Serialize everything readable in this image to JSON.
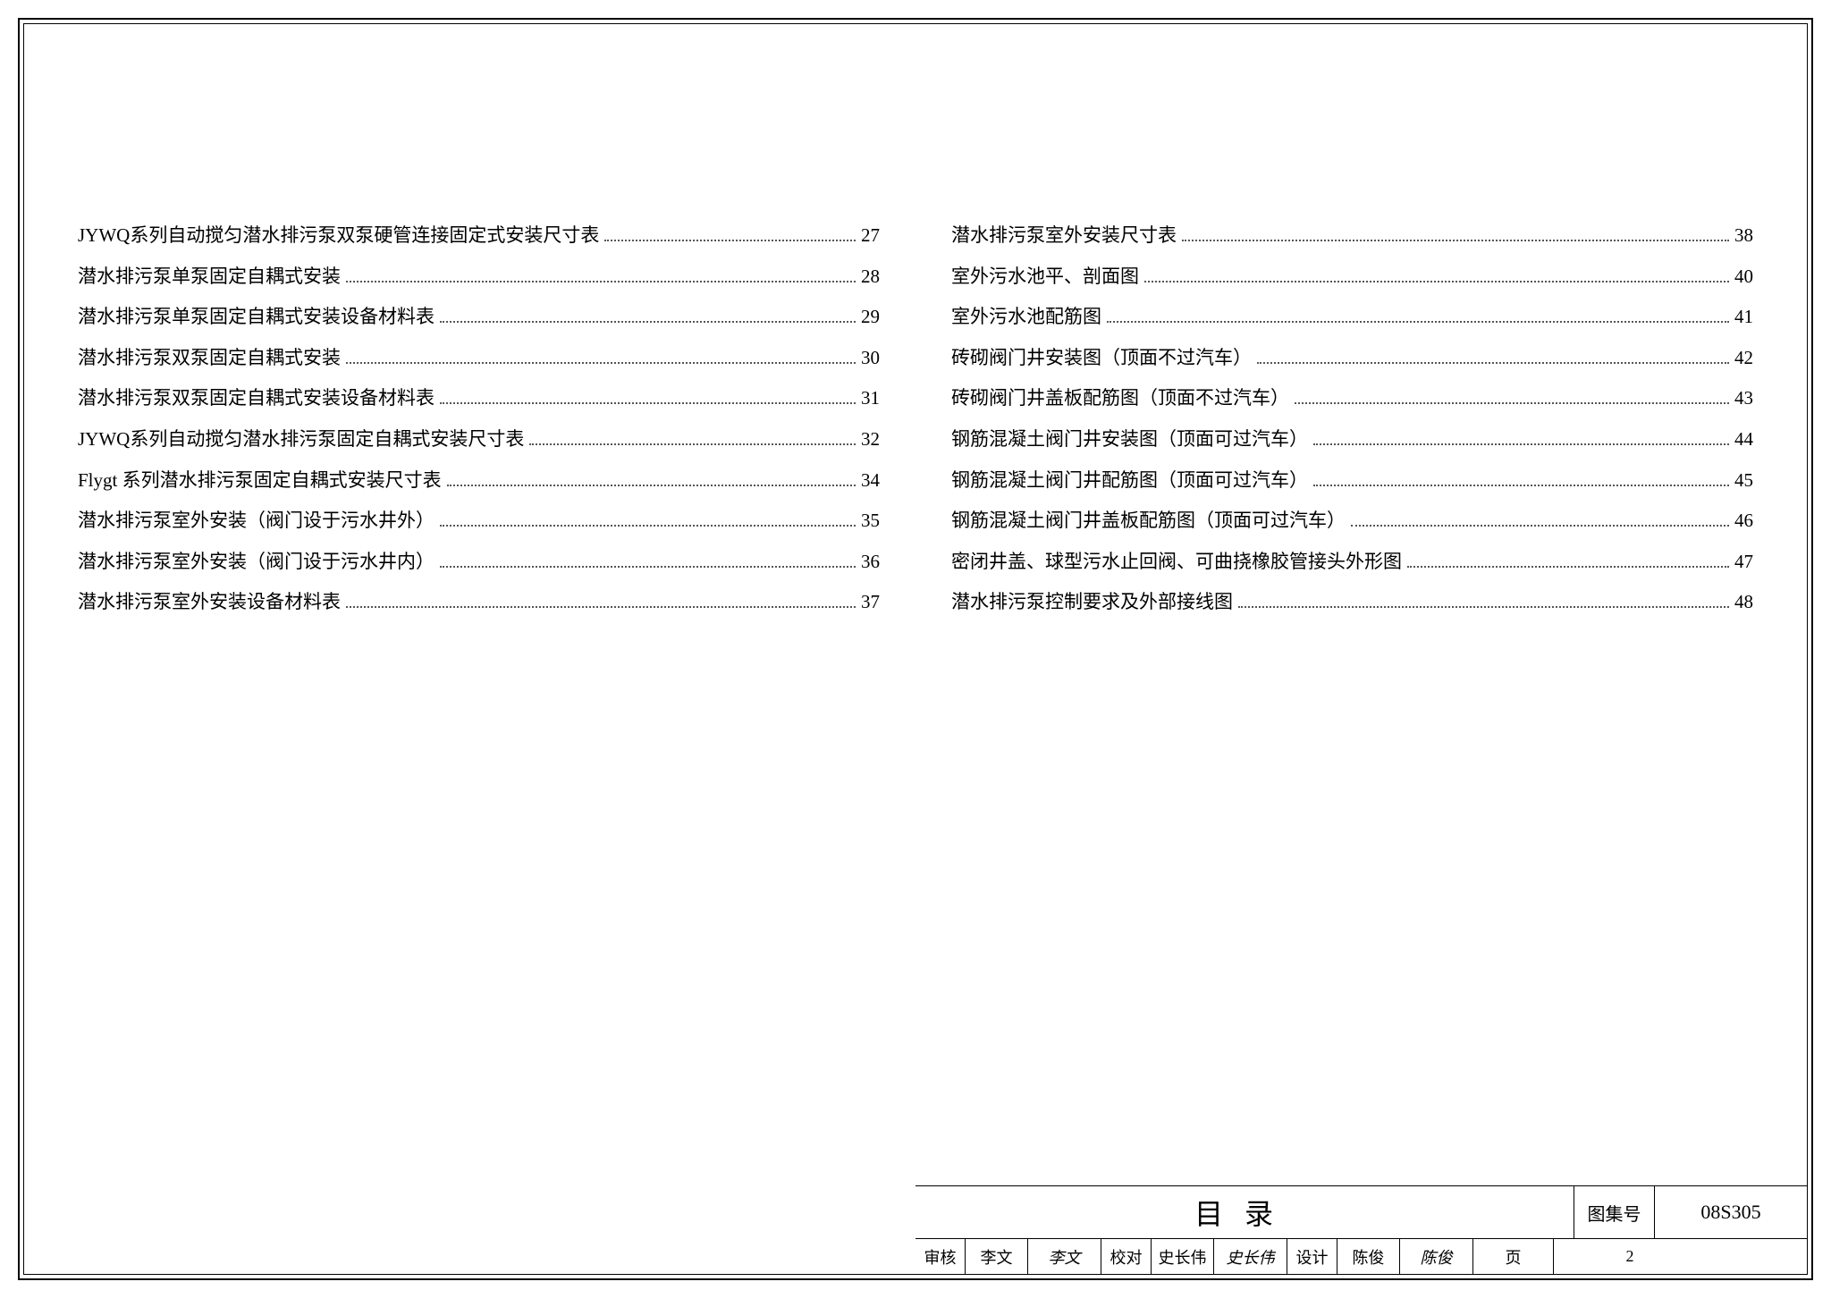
{
  "toc": {
    "left": [
      {
        "title": "JYWQ系列自动搅匀潜水排污泵双泵硬管连接固定式安装尺寸表",
        "page": "27"
      },
      {
        "title": "潜水排污泵单泵固定自耦式安装",
        "page": "28"
      },
      {
        "title": "潜水排污泵单泵固定自耦式安装设备材料表",
        "page": "29"
      },
      {
        "title": "潜水排污泵双泵固定自耦式安装",
        "page": "30"
      },
      {
        "title": "潜水排污泵双泵固定自耦式安装设备材料表",
        "page": "31"
      },
      {
        "title": "JYWQ系列自动搅匀潜水排污泵固定自耦式安装尺寸表",
        "page": "32"
      },
      {
        "title": "Flygt 系列潜水排污泵固定自耦式安装尺寸表",
        "page": "34"
      },
      {
        "title": "潜水排污泵室外安装（阀门设于污水井外）",
        "page": "35"
      },
      {
        "title": "潜水排污泵室外安装（阀门设于污水井内）",
        "page": "36"
      },
      {
        "title": "潜水排污泵室外安装设备材料表",
        "page": "37"
      }
    ],
    "right": [
      {
        "title": "潜水排污泵室外安装尺寸表",
        "page": "38"
      },
      {
        "title": "室外污水池平、剖面图",
        "page": "40"
      },
      {
        "title": "室外污水池配筋图",
        "page": "41"
      },
      {
        "title": "砖砌阀门井安装图（顶面不过汽车）",
        "page": "42"
      },
      {
        "title": "砖砌阀门井盖板配筋图（顶面不过汽车）",
        "page": "43"
      },
      {
        "title": "钢筋混凝土阀门井安装图（顶面可过汽车）",
        "page": "44"
      },
      {
        "title": "钢筋混凝土阀门井配筋图（顶面可过汽车）",
        "page": "45"
      },
      {
        "title": "钢筋混凝土阀门井盖板配筋图（顶面可过汽车）",
        "page": "46"
      },
      {
        "title": "密闭井盖、球型污水止回阀、可曲挠橡胶管接头外形图",
        "page": "47"
      },
      {
        "title": "潜水排污泵控制要求及外部接线图",
        "page": "48"
      }
    ]
  },
  "titleblock": {
    "main_title": "目录",
    "code_label": "图集号",
    "code_value": "08S305",
    "review_label": "审核",
    "review_name": "李文",
    "review_sig": "李文",
    "check_label": "校对",
    "check_name": "史长伟",
    "check_sig": "史长伟",
    "design_label": "设计",
    "design_name": "陈俊",
    "design_sig": "陈俊",
    "page_label": "页",
    "page_value": "2"
  },
  "style": {
    "font_family": "SimSun",
    "body_fontsize": 21,
    "title_fontsize": 32,
    "border_color": "#000000",
    "background": "#ffffff",
    "dot_color": "#555555"
  }
}
